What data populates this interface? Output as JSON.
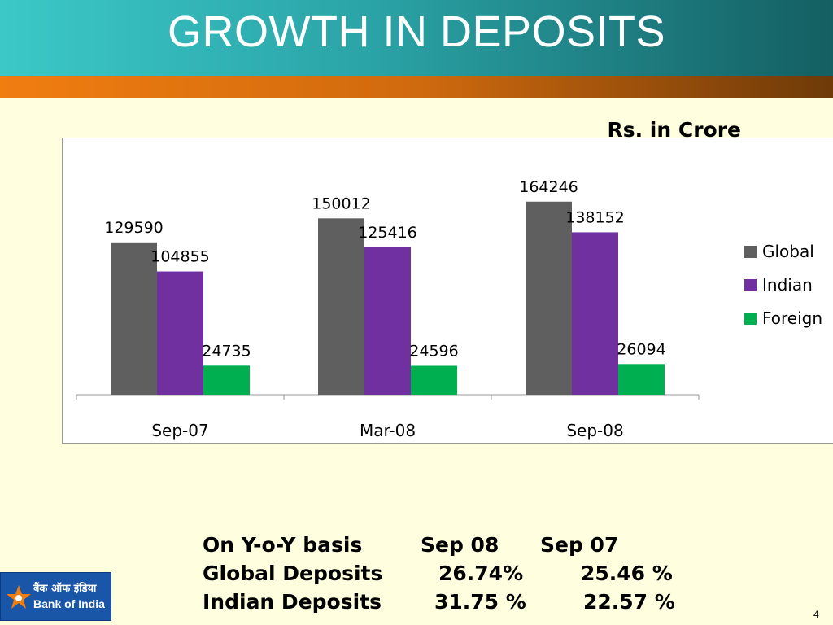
{
  "slide": {
    "title": "GROWTH IN DEPOSITS",
    "unit_label": "Rs. in Crore",
    "page_number": "4"
  },
  "logo": {
    "hindi_name": "बैंक ऑफ इंडिया",
    "name": "Bank of India"
  },
  "summary": {
    "header": [
      "On Y-o-Y basis",
      "Sep 08",
      "Sep 07"
    ],
    "rows": [
      [
        "Global Deposits",
        "26.74%",
        "25.46 %"
      ],
      [
        "Indian Deposits",
        "31.75 %",
        "22.57 %"
      ]
    ]
  },
  "colors": {
    "global": "#5F5F5F",
    "indian": "#7030A0",
    "foreign": "#00B050"
  },
  "chart_data": {
    "type": "bar",
    "categories": [
      "Sep-07",
      "Mar-08",
      "Sep-08"
    ],
    "series": [
      {
        "name": "Global",
        "values": [
          129590,
          150012,
          164246
        ]
      },
      {
        "name": "Indian",
        "values": [
          104855,
          125416,
          138152
        ]
      },
      {
        "name": "Foreign",
        "values": [
          24735,
          24596,
          26094
        ]
      }
    ],
    "ylim": [
      0,
      180000
    ],
    "grid": false,
    "legend": "right"
  }
}
